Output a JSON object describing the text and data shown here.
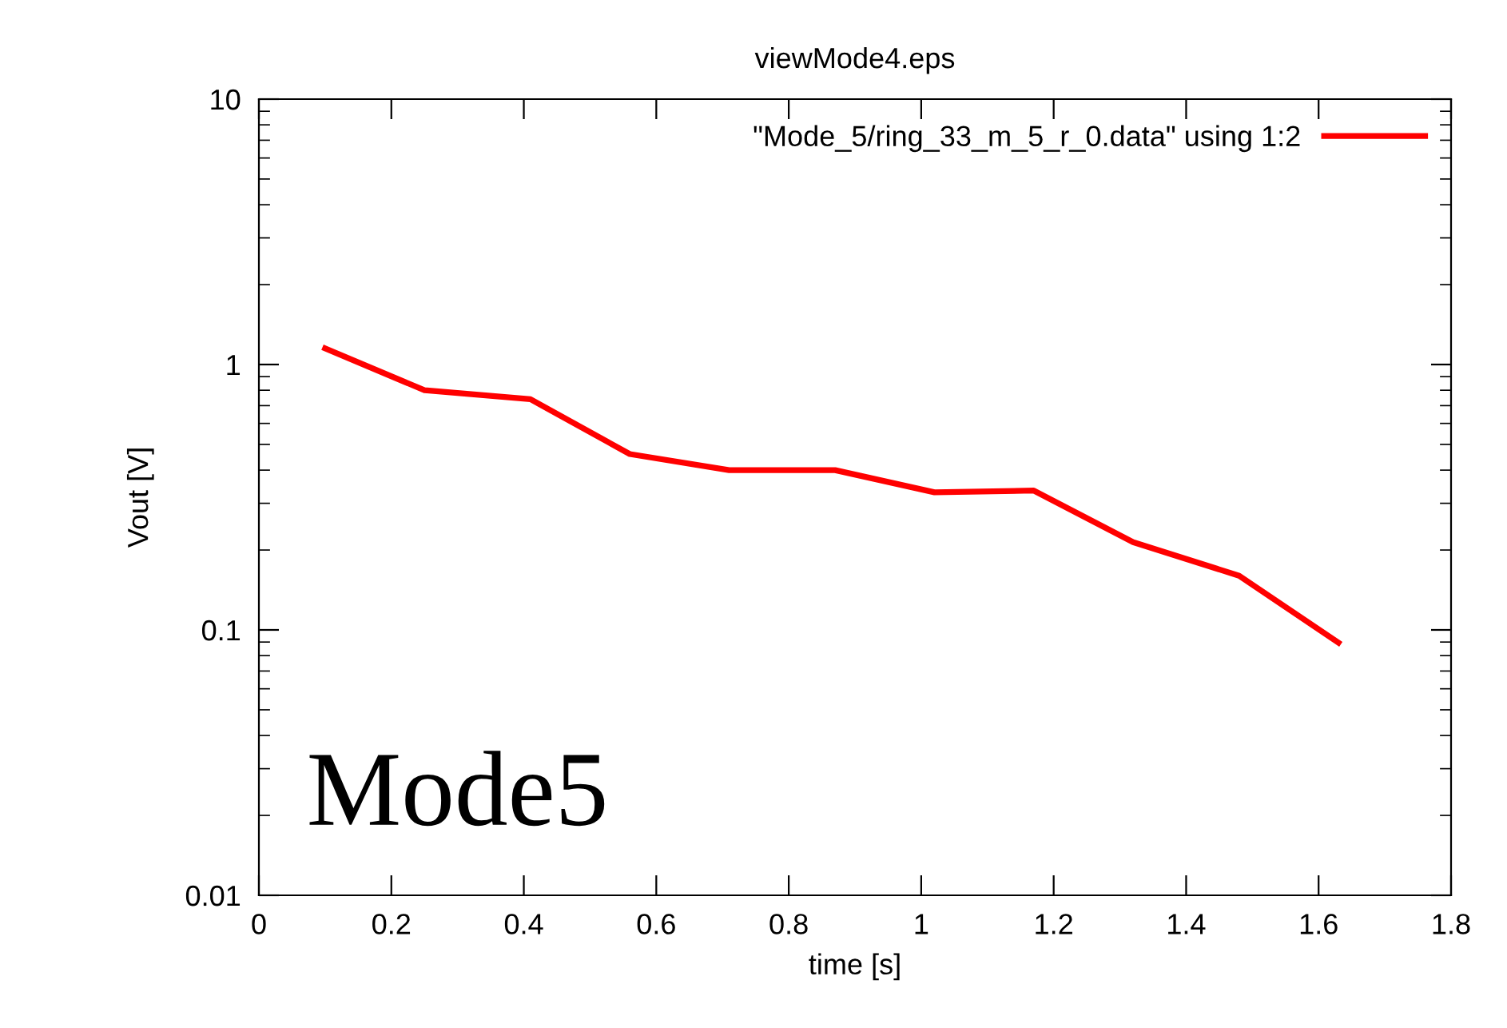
{
  "chart_data": {
    "type": "line",
    "title": "viewMode4.eps",
    "xlabel": "time [s]",
    "ylabel": "Vout [V]",
    "log": "y",
    "x": [
      0.1,
      0.25,
      0.41,
      0.56,
      0.71,
      0.87,
      1.02,
      1.17,
      1.32,
      1.48,
      1.63
    ],
    "series": [
      {
        "name": "\"Mode_5/ring_33_m_5_r_0.data\" using 1:2",
        "color": "#ff0000",
        "values": [
          1.15,
          0.8,
          0.74,
          0.46,
          0.4,
          0.4,
          0.33,
          0.335,
          0.214,
          0.16,
          0.0895
        ]
      }
    ],
    "xlim": [
      0,
      1.8
    ],
    "xticks": [
      0,
      0.2,
      0.4,
      0.6,
      0.8,
      1,
      1.2,
      1.4,
      1.6,
      1.8
    ],
    "ylim": [
      0.01,
      10
    ],
    "yticks": [
      0.01,
      0.1,
      1,
      10
    ],
    "annotations": [
      "Mode5"
    ],
    "legend": "top right",
    "grid": false,
    "marker": "none",
    "line_style": "solid"
  }
}
